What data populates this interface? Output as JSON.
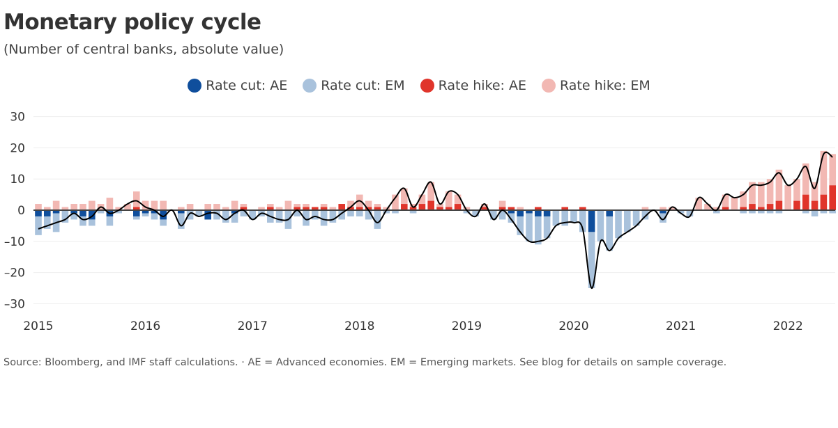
{
  "title": "Monetary policy cycle",
  "subtitle": "(Number of central banks, absolute value)",
  "source": "Source: Bloomberg, and IMF staff calculations. · AE = Advanced economies. EM = Emerging markets. See blog for details on sample coverage.",
  "chart_data": {
    "type": "bar",
    "stacked": true,
    "title": "Monetary policy cycle",
    "subtitle": "(Number of central banks, absolute value)",
    "frequency": "monthly",
    "start": "2015-01",
    "end": "2022-06",
    "ylim": [
      -30,
      30
    ],
    "yticks": [
      30,
      20,
      10,
      0,
      -10,
      -20,
      -30
    ],
    "ytick_labels": [
      "30",
      "20",
      "10",
      "0",
      "–10",
      "–20",
      "–30"
    ],
    "xtick_labels": [
      "2015",
      "2016",
      "2017",
      "2018",
      "2019",
      "2020",
      "2021",
      "2022"
    ],
    "grid": true,
    "legend_placement": "top-center",
    "net_line": "smoothed net (hikes minus cuts), black",
    "series": [
      {
        "name": "Rate cut: AE",
        "color": "#0f4e9c",
        "sign": -1,
        "values": [
          2,
          2,
          1,
          0,
          1,
          2,
          3,
          0,
          2,
          0,
          0,
          2,
          1,
          1,
          3,
          0,
          1,
          0,
          0,
          3,
          0,
          0,
          1,
          0,
          0,
          0,
          0,
          0,
          0,
          0,
          0,
          0,
          0,
          0,
          0,
          0,
          0,
          0,
          0,
          0,
          0,
          0,
          0,
          0,
          0,
          0,
          0,
          0,
          0,
          0,
          0,
          0,
          0,
          1,
          2,
          1,
          2,
          2,
          0,
          0,
          0,
          0,
          7,
          0,
          2,
          0,
          0,
          0,
          0,
          0,
          1,
          0,
          0,
          0,
          0,
          0,
          0,
          0,
          0,
          0,
          0,
          0,
          0,
          0,
          0,
          0,
          0,
          0,
          0,
          0
        ]
      },
      {
        "name": "Rate cut: EM",
        "color": "#a9c2dc",
        "sign": -1,
        "values": [
          6,
          4,
          6,
          4,
          2,
          3,
          2,
          1,
          3,
          1,
          0,
          1,
          1,
          2,
          2,
          0,
          5,
          3,
          2,
          0,
          3,
          4,
          3,
          2,
          3,
          2,
          4,
          4,
          6,
          2,
          5,
          3,
          5,
          4,
          3,
          2,
          2,
          3,
          6,
          1,
          1,
          0,
          1,
          0,
          0,
          0,
          0,
          0,
          1,
          2,
          0,
          3,
          3,
          3,
          6,
          9,
          9,
          7,
          5,
          5,
          4,
          7,
          18,
          10,
          11,
          9,
          7,
          5,
          3,
          0,
          3,
          0,
          1,
          2,
          0,
          0,
          1,
          0,
          0,
          1,
          1,
          1,
          1,
          1,
          0,
          0,
          1,
          2,
          1,
          1
        ]
      },
      {
        "name": "Rate hike: AE",
        "color": "#e0352b",
        "sign": 1,
        "values": [
          0,
          0,
          0,
          0,
          0,
          0,
          0,
          0,
          0,
          0,
          0,
          1,
          0,
          0,
          0,
          0,
          0,
          0,
          0,
          0,
          0,
          0,
          0,
          1,
          0,
          0,
          1,
          0,
          0,
          1,
          1,
          1,
          1,
          0,
          2,
          1,
          1,
          1,
          1,
          0,
          0,
          2,
          1,
          2,
          3,
          1,
          1,
          2,
          0,
          0,
          1,
          0,
          1,
          1,
          0,
          0,
          1,
          0,
          0,
          1,
          0,
          1,
          0,
          0,
          0,
          0,
          0,
          0,
          0,
          0,
          0,
          0,
          0,
          0,
          0,
          0,
          0,
          1,
          0,
          1,
          2,
          1,
          2,
          3,
          0,
          3,
          5,
          3,
          5,
          8
        ]
      },
      {
        "name": "Rate hike: EM",
        "color": "#f2b8b3",
        "sign": 1,
        "values": [
          2,
          1,
          3,
          1,
          2,
          2,
          3,
          2,
          4,
          1,
          2,
          5,
          3,
          3,
          3,
          0,
          1,
          2,
          0,
          2,
          2,
          1,
          3,
          1,
          0,
          1,
          1,
          1,
          3,
          1,
          1,
          0,
          1,
          1,
          0,
          2,
          4,
          2,
          1,
          1,
          5,
          5,
          1,
          3,
          6,
          1,
          5,
          3,
          1,
          0,
          1,
          0,
          2,
          0,
          1,
          0,
          0,
          0,
          0,
          0,
          0,
          0,
          0,
          0,
          0,
          0,
          0,
          0,
          1,
          0,
          1,
          1,
          0,
          0,
          4,
          2,
          1,
          4,
          4,
          5,
          7,
          8,
          8,
          10,
          8,
          7,
          10,
          6,
          14,
          10
        ]
      }
    ]
  }
}
